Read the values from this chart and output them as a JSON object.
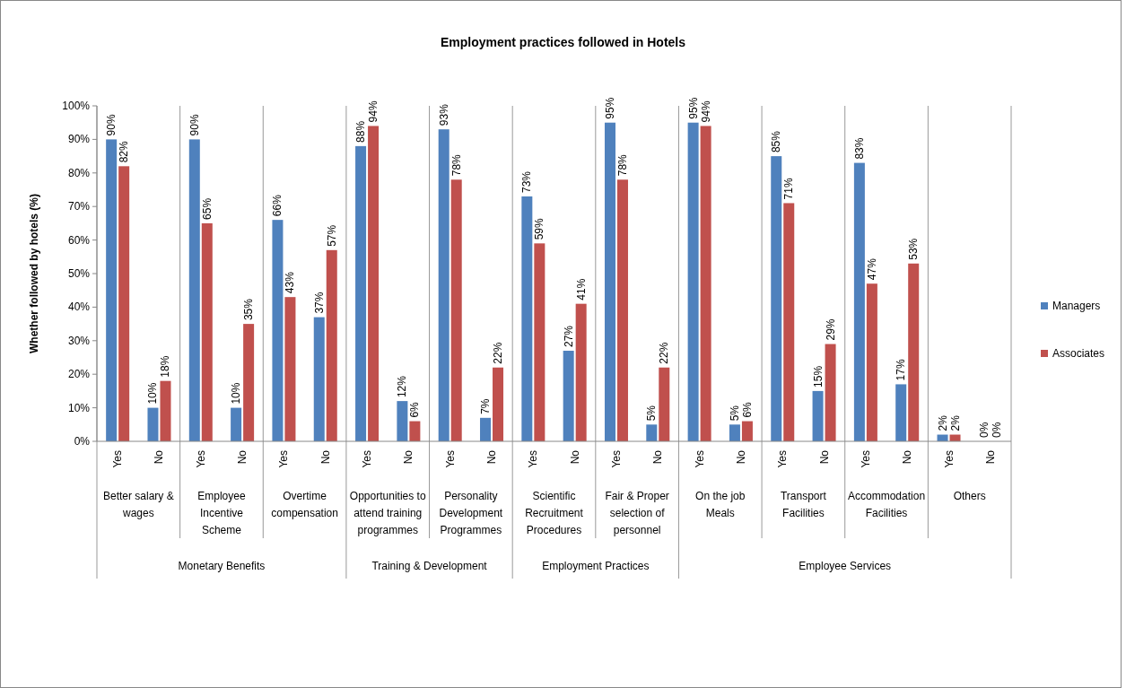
{
  "chart_data": {
    "type": "bar",
    "title": "Employment practices followed in Hotels",
    "ylabel": "Whether followed by hotels (%)",
    "categories": [
      "Yes",
      "No",
      "Yes",
      "No",
      "Yes",
      "No",
      "Yes",
      "No",
      "Yes",
      "No",
      "Yes",
      "No",
      "Yes",
      "No",
      "Yes",
      "No",
      "Yes",
      "No",
      "Yes",
      "No",
      "Yes",
      "No"
    ],
    "series": [
      {
        "name": "Managers",
        "color": "#4f81bd",
        "values": [
          90,
          10,
          90,
          10,
          66,
          37,
          88,
          12,
          93,
          7,
          73,
          27,
          95,
          5,
          95,
          5,
          85,
          15,
          83,
          17,
          2,
          0
        ],
        "value_labels": [
          "90%",
          "10%",
          "90%",
          "10%",
          "66%",
          "37%",
          "88%",
          "12%",
          "93%",
          "7%",
          "73%",
          "27%",
          "95%",
          "5%",
          "95%",
          "5%",
          "85%",
          "15%",
          "83%",
          "17%",
          "2%",
          "0%"
        ]
      },
      {
        "name": "Associates",
        "color": "#c0504d",
        "values": [
          82,
          18,
          65,
          35,
          43,
          57,
          94,
          6,
          78,
          22,
          59,
          41,
          78,
          22,
          94,
          6,
          71,
          29,
          47,
          53,
          2,
          0
        ],
        "value_labels": [
          "82%",
          "18%",
          "65%",
          "35%",
          "43%",
          "57%",
          "94%",
          "6%",
          "78%",
          "22%",
          "59%",
          "41%",
          "78%",
          "22%",
          "94%",
          "6%",
          "71%",
          "29%",
          "47%",
          "53%",
          "2%",
          "0%"
        ]
      }
    ],
    "ylim": [
      0,
      100
    ],
    "yticks": [
      {
        "value": 0,
        "label": "0%"
      },
      {
        "value": 10,
        "label": "10%"
      },
      {
        "value": 20,
        "label": "20%"
      },
      {
        "value": 30,
        "label": "30%"
      },
      {
        "value": 40,
        "label": "40%"
      },
      {
        "value": 50,
        "label": "50%"
      },
      {
        "value": 60,
        "label": "60%"
      },
      {
        "value": 70,
        "label": "70%"
      },
      {
        "value": 80,
        "label": "80%"
      },
      {
        "value": 90,
        "label": "90%"
      },
      {
        "value": 100,
        "label": "100%"
      }
    ],
    "legend": "right",
    "annotations": [
      "Better salary & wages",
      "Employee Incentive Scheme",
      "Overtime compensation",
      "Opportunities to attend  training programmes",
      "Personality Development Programmes",
      "Scientific Recruitment Procedures",
      "Fair & Proper selection of personnel",
      "On the job Meals",
      "Transport Facilities",
      "Accommodation Facilities",
      "Others",
      "Monetary Benefits",
      "Training & Development",
      "Employment Practices",
      "Employee Services"
    ]
  }
}
